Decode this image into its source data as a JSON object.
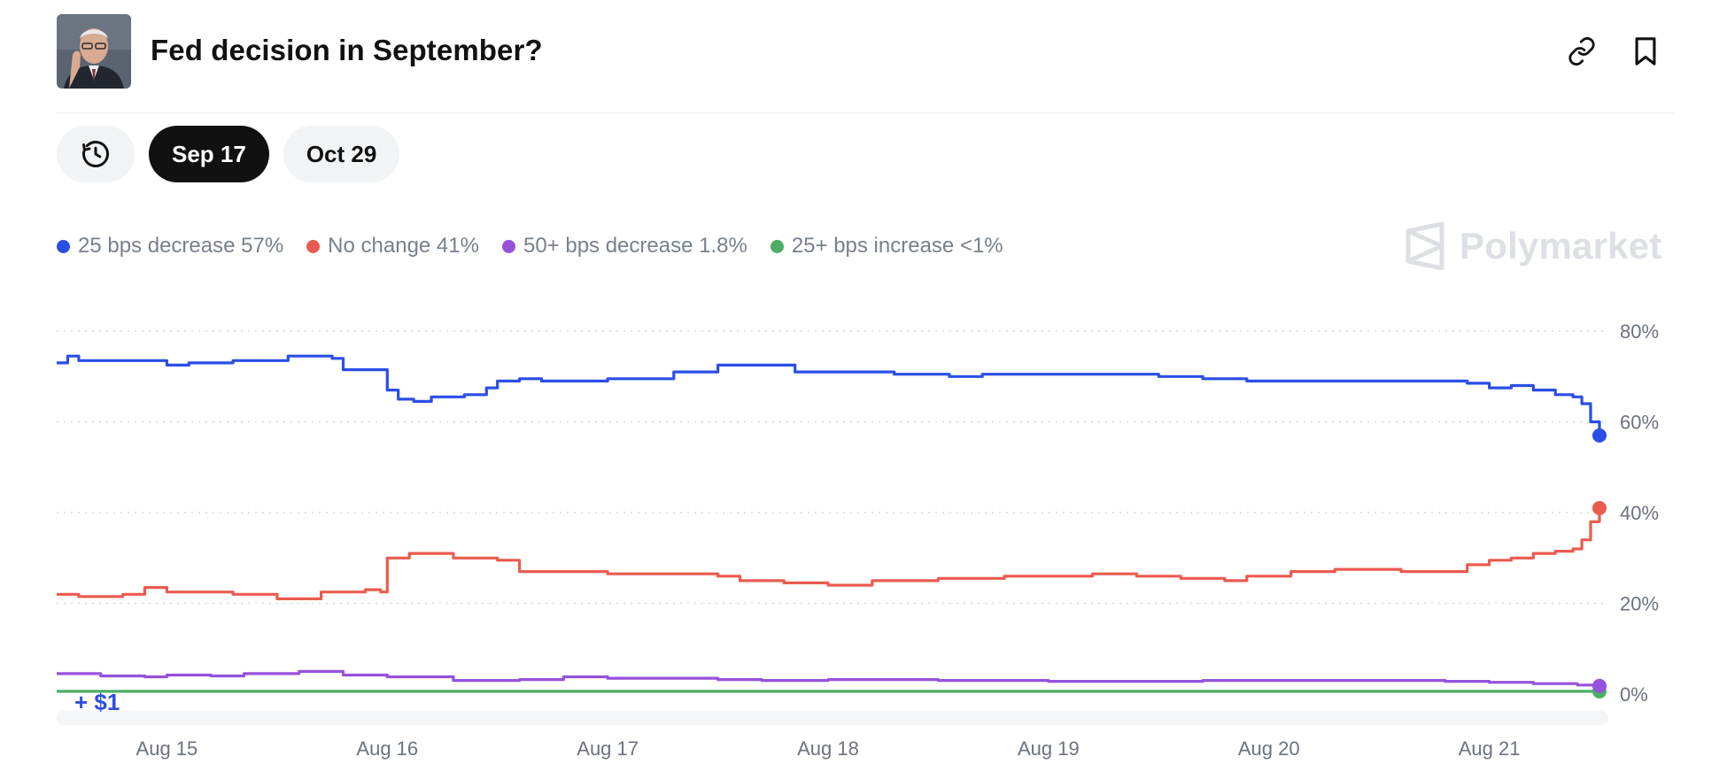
{
  "header": {
    "title": "Fed decision in September?",
    "avatar_icon": "person-portrait",
    "link_icon": "link-icon",
    "bookmark_icon": "bookmark-icon"
  },
  "tabs": {
    "history_icon": "history-icon",
    "items": [
      {
        "label": "Sep 17",
        "active": true
      },
      {
        "label": "Oct 29",
        "active": false
      }
    ]
  },
  "brand": {
    "name": "Polymarket"
  },
  "colors": {
    "blue": "#2a4ee6",
    "red": "#ea5b4f",
    "purple": "#9552dc",
    "green": "#4cae64"
  },
  "chart_data": {
    "type": "line",
    "x_tick_labels": [
      "Aug 15",
      "Aug 16",
      "Aug 17",
      "Aug 18",
      "Aug 19",
      "Aug 20",
      "Aug 21"
    ],
    "y_tick_labels": [
      "80%",
      "60%",
      "40%",
      "20%",
      "0%"
    ],
    "ylim": [
      0,
      80
    ],
    "xlim": [
      14.5,
      21.5
    ],
    "grid": "horizontal-dotted",
    "legend_position": "top-left",
    "annotation": "+ $1",
    "series": [
      {
        "name": "25 bps decrease",
        "label": "25 bps decrease 57%",
        "color": "#2a4ee6",
        "points": [
          [
            14.5,
            73
          ],
          [
            14.55,
            74.5
          ],
          [
            14.6,
            73.5
          ],
          [
            14.8,
            73.5
          ],
          [
            15.0,
            72.5
          ],
          [
            15.1,
            73
          ],
          [
            15.3,
            73.5
          ],
          [
            15.55,
            74.5
          ],
          [
            15.75,
            74
          ],
          [
            15.8,
            71.5
          ],
          [
            15.97,
            71.5
          ],
          [
            16.0,
            67
          ],
          [
            16.05,
            65
          ],
          [
            16.12,
            64.5
          ],
          [
            16.2,
            65.5
          ],
          [
            16.35,
            66
          ],
          [
            16.45,
            67.5
          ],
          [
            16.5,
            69
          ],
          [
            16.6,
            69.5
          ],
          [
            16.7,
            69
          ],
          [
            16.9,
            69
          ],
          [
            17.0,
            69.5
          ],
          [
            17.2,
            69.5
          ],
          [
            17.3,
            71
          ],
          [
            17.5,
            72.5
          ],
          [
            17.75,
            72.5
          ],
          [
            17.85,
            71
          ],
          [
            18.0,
            71
          ],
          [
            18.3,
            70.5
          ],
          [
            18.55,
            70
          ],
          [
            18.7,
            70.5
          ],
          [
            19.0,
            70.5
          ],
          [
            19.3,
            70.5
          ],
          [
            19.5,
            70
          ],
          [
            19.7,
            69.5
          ],
          [
            19.9,
            69
          ],
          [
            20.2,
            69
          ],
          [
            20.5,
            69
          ],
          [
            20.7,
            69
          ],
          [
            20.9,
            68.5
          ],
          [
            21.0,
            67.5
          ],
          [
            21.1,
            68
          ],
          [
            21.2,
            67
          ],
          [
            21.3,
            66
          ],
          [
            21.38,
            65.5
          ],
          [
            21.42,
            64
          ],
          [
            21.46,
            60
          ],
          [
            21.5,
            57
          ]
        ]
      },
      {
        "name": "No change",
        "label": "No change 41%",
        "color": "#ea5b4f",
        "points": [
          [
            14.5,
            22
          ],
          [
            14.6,
            21.5
          ],
          [
            14.8,
            22
          ],
          [
            14.9,
            23.5
          ],
          [
            15.0,
            22.5
          ],
          [
            15.3,
            22
          ],
          [
            15.5,
            21
          ],
          [
            15.7,
            22.5
          ],
          [
            15.9,
            23
          ],
          [
            15.97,
            22.5
          ],
          [
            16.0,
            30
          ],
          [
            16.1,
            31
          ],
          [
            16.3,
            30
          ],
          [
            16.5,
            29.5
          ],
          [
            16.6,
            27
          ],
          [
            16.8,
            27
          ],
          [
            17.0,
            26.5
          ],
          [
            17.3,
            26.5
          ],
          [
            17.5,
            26
          ],
          [
            17.6,
            25
          ],
          [
            17.8,
            24.5
          ],
          [
            18.0,
            24
          ],
          [
            18.2,
            25
          ],
          [
            18.5,
            25.5
          ],
          [
            18.8,
            26
          ],
          [
            19.0,
            26
          ],
          [
            19.2,
            26.5
          ],
          [
            19.4,
            26
          ],
          [
            19.6,
            25.5
          ],
          [
            19.8,
            25
          ],
          [
            19.9,
            26
          ],
          [
            20.1,
            27
          ],
          [
            20.3,
            27.5
          ],
          [
            20.6,
            27
          ],
          [
            20.8,
            27
          ],
          [
            20.9,
            28.5
          ],
          [
            21.0,
            29.5
          ],
          [
            21.1,
            30
          ],
          [
            21.2,
            31
          ],
          [
            21.3,
            31.5
          ],
          [
            21.38,
            32
          ],
          [
            21.42,
            34
          ],
          [
            21.46,
            38
          ],
          [
            21.5,
            41
          ]
        ]
      },
      {
        "name": "50+ bps decrease",
        "label": "50+ bps decrease 1.8%",
        "color": "#9552dc",
        "points": [
          [
            14.5,
            4.5
          ],
          [
            14.7,
            4
          ],
          [
            14.9,
            3.8
          ],
          [
            15.0,
            4.2
          ],
          [
            15.2,
            4
          ],
          [
            15.35,
            4.5
          ],
          [
            15.6,
            5
          ],
          [
            15.8,
            4.2
          ],
          [
            16.0,
            3.8
          ],
          [
            16.3,
            3
          ],
          [
            16.6,
            3.2
          ],
          [
            16.8,
            3.8
          ],
          [
            17.0,
            3.5
          ],
          [
            17.5,
            3.2
          ],
          [
            17.7,
            3
          ],
          [
            18.0,
            3.2
          ],
          [
            18.5,
            3
          ],
          [
            19.0,
            2.8
          ],
          [
            19.5,
            2.8
          ],
          [
            19.7,
            3
          ],
          [
            20.0,
            3
          ],
          [
            20.4,
            3
          ],
          [
            20.8,
            2.8
          ],
          [
            21.0,
            2.6
          ],
          [
            21.2,
            2.3
          ],
          [
            21.4,
            2
          ],
          [
            21.5,
            1.8
          ]
        ]
      },
      {
        "name": "25+ bps increase",
        "label": "25+ bps increase <1%",
        "color": "#4cae64",
        "points": [
          [
            14.5,
            0.6
          ],
          [
            15.5,
            0.6
          ],
          [
            16.5,
            0.6
          ],
          [
            17.5,
            0.6
          ],
          [
            18.5,
            0.6
          ],
          [
            19.5,
            0.6
          ],
          [
            20.5,
            0.6
          ],
          [
            21.5,
            0.6
          ]
        ]
      }
    ]
  }
}
